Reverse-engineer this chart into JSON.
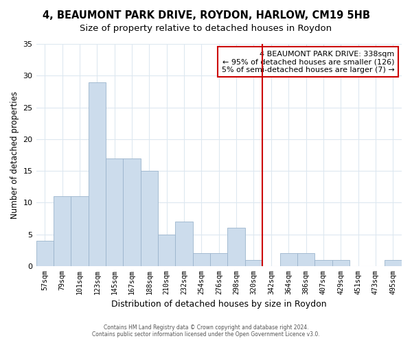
{
  "title": "4, BEAUMONT PARK DRIVE, ROYDON, HARLOW, CM19 5HB",
  "subtitle": "Size of property relative to detached houses in Roydon",
  "xlabel": "Distribution of detached houses by size in Roydon",
  "ylabel": "Number of detached properties",
  "bar_labels": [
    "57sqm",
    "79sqm",
    "101sqm",
    "123sqm",
    "145sqm",
    "167sqm",
    "188sqm",
    "210sqm",
    "232sqm",
    "254sqm",
    "276sqm",
    "298sqm",
    "320sqm",
    "342sqm",
    "364sqm",
    "386sqm",
    "407sqm",
    "429sqm",
    "451sqm",
    "473sqm",
    "495sqm"
  ],
  "bar_values": [
    4,
    11,
    11,
    29,
    17,
    17,
    15,
    5,
    7,
    2,
    2,
    6,
    1,
    0,
    2,
    2,
    1,
    1,
    0,
    0,
    1
  ],
  "bar_color": "#ccdcec",
  "bar_edge_color": "#9ab4cc",
  "vline_color": "#cc0000",
  "annotation_title": "4 BEAUMONT PARK DRIVE: 338sqm",
  "annotation_line1": "← 95% of detached houses are smaller (126)",
  "annotation_line2": "5% of semi-detached houses are larger (7) →",
  "annotation_box_facecolor": "#ffffff",
  "annotation_border_color": "#cc0000",
  "ylim": [
    0,
    35
  ],
  "yticks": [
    0,
    5,
    10,
    15,
    20,
    25,
    30,
    35
  ],
  "footer1": "Contains HM Land Registry data © Crown copyright and database right 2024.",
  "footer2": "Contains public sector information licensed under the Open Government Licence v3.0.",
  "background_color": "#ffffff",
  "grid_color": "#dde8f0",
  "title_fontsize": 10.5,
  "subtitle_fontsize": 9.5,
  "vline_index": 13
}
